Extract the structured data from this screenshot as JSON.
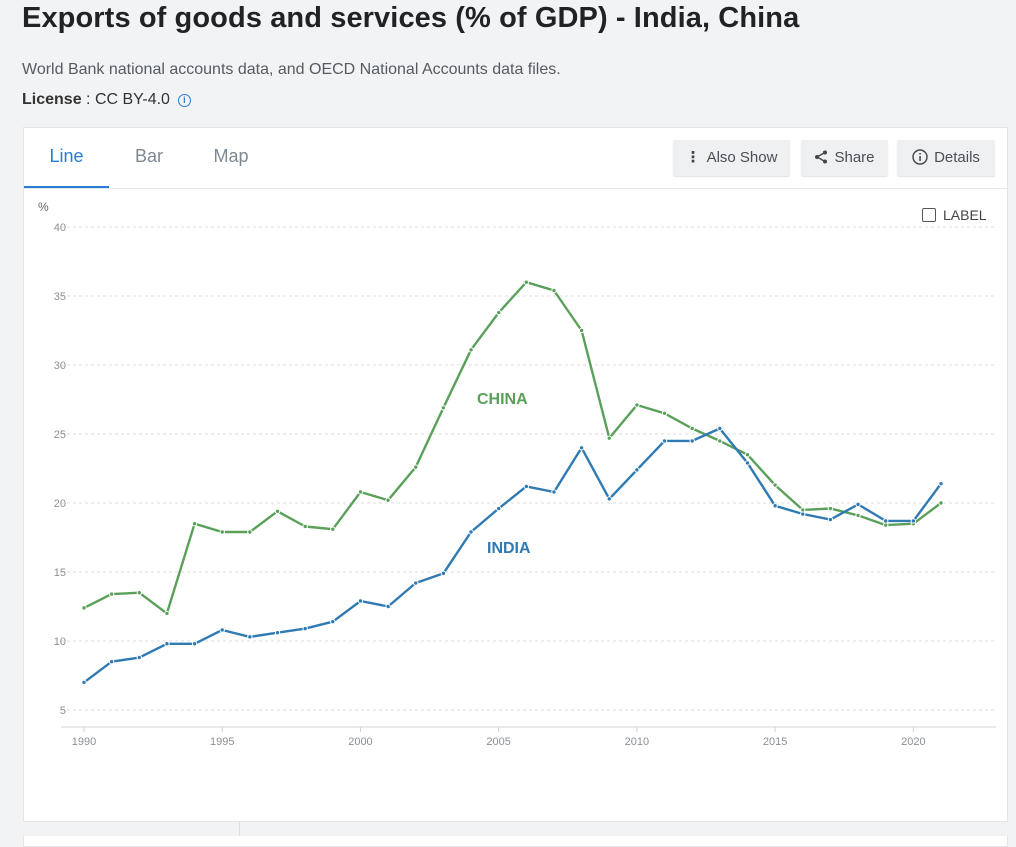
{
  "header": {
    "title": "Exports of goods and services (% of GDP) - India, China",
    "source": "World Bank national accounts data, and OECD National Accounts data files.",
    "license_label": "License",
    "license_sep": " : ",
    "license_value": "CC BY-4.0",
    "info_icon": "info-circle-icon"
  },
  "tabs": [
    {
      "label": "Line",
      "active": true
    },
    {
      "label": "Bar",
      "active": false
    },
    {
      "label": "Map",
      "active": false
    }
  ],
  "toolbar": {
    "also_show": "Also Show",
    "share": "Share",
    "details": "Details",
    "also_show_icon": "more-vertical-icon",
    "share_icon": "share-icon",
    "details_icon": "info-circle-icon"
  },
  "label_toggle": "LABEL",
  "colors": {
    "china": "#5aa05a",
    "india": "#2f7ab3",
    "accent": "#2a7bd6"
  },
  "chart_data": {
    "type": "line",
    "title": "",
    "xlabel": "",
    "ylabel": "%",
    "xlim": [
      1990,
      2021
    ],
    "ylim": [
      5,
      40
    ],
    "y_ticks": [
      5,
      10,
      15,
      20,
      25,
      30,
      35,
      40
    ],
    "x_ticks": [
      1990,
      1995,
      2000,
      2005,
      2010,
      2015,
      2020
    ],
    "grid": true,
    "x": [
      1990,
      1991,
      1992,
      1993,
      1994,
      1995,
      1996,
      1997,
      1998,
      1999,
      2000,
      2001,
      2002,
      2003,
      2004,
      2005,
      2006,
      2007,
      2008,
      2009,
      2010,
      2011,
      2012,
      2013,
      2014,
      2015,
      2016,
      2017,
      2018,
      2019,
      2020,
      2021
    ],
    "series": [
      {
        "name": "CHINA",
        "color": "#5aa05a",
        "values": [
          12.4,
          13.4,
          13.5,
          12.0,
          18.5,
          17.9,
          17.9,
          19.4,
          18.3,
          18.1,
          20.8,
          20.2,
          22.6,
          26.9,
          31.1,
          33.8,
          36.0,
          35.4,
          32.5,
          24.7,
          27.1,
          26.5,
          25.4,
          24.5,
          23.5,
          21.3,
          19.5,
          19.6,
          19.1,
          18.4,
          18.5,
          20.0
        ]
      },
      {
        "name": "INDIA",
        "color": "#2f7ab3",
        "values": [
          7.0,
          8.5,
          8.8,
          9.8,
          9.8,
          10.8,
          10.3,
          10.6,
          10.9,
          11.4,
          12.9,
          12.5,
          14.2,
          14.9,
          17.9,
          19.6,
          21.2,
          20.8,
          24.0,
          20.3,
          22.4,
          24.5,
          24.5,
          25.4,
          22.9,
          19.8,
          19.2,
          18.8,
          19.9,
          18.7,
          18.7,
          21.4
        ]
      }
    ],
    "series_labels": [
      {
        "text": "CHINA",
        "series": "CHINA"
      },
      {
        "text": "INDIA",
        "series": "INDIA"
      }
    ]
  }
}
